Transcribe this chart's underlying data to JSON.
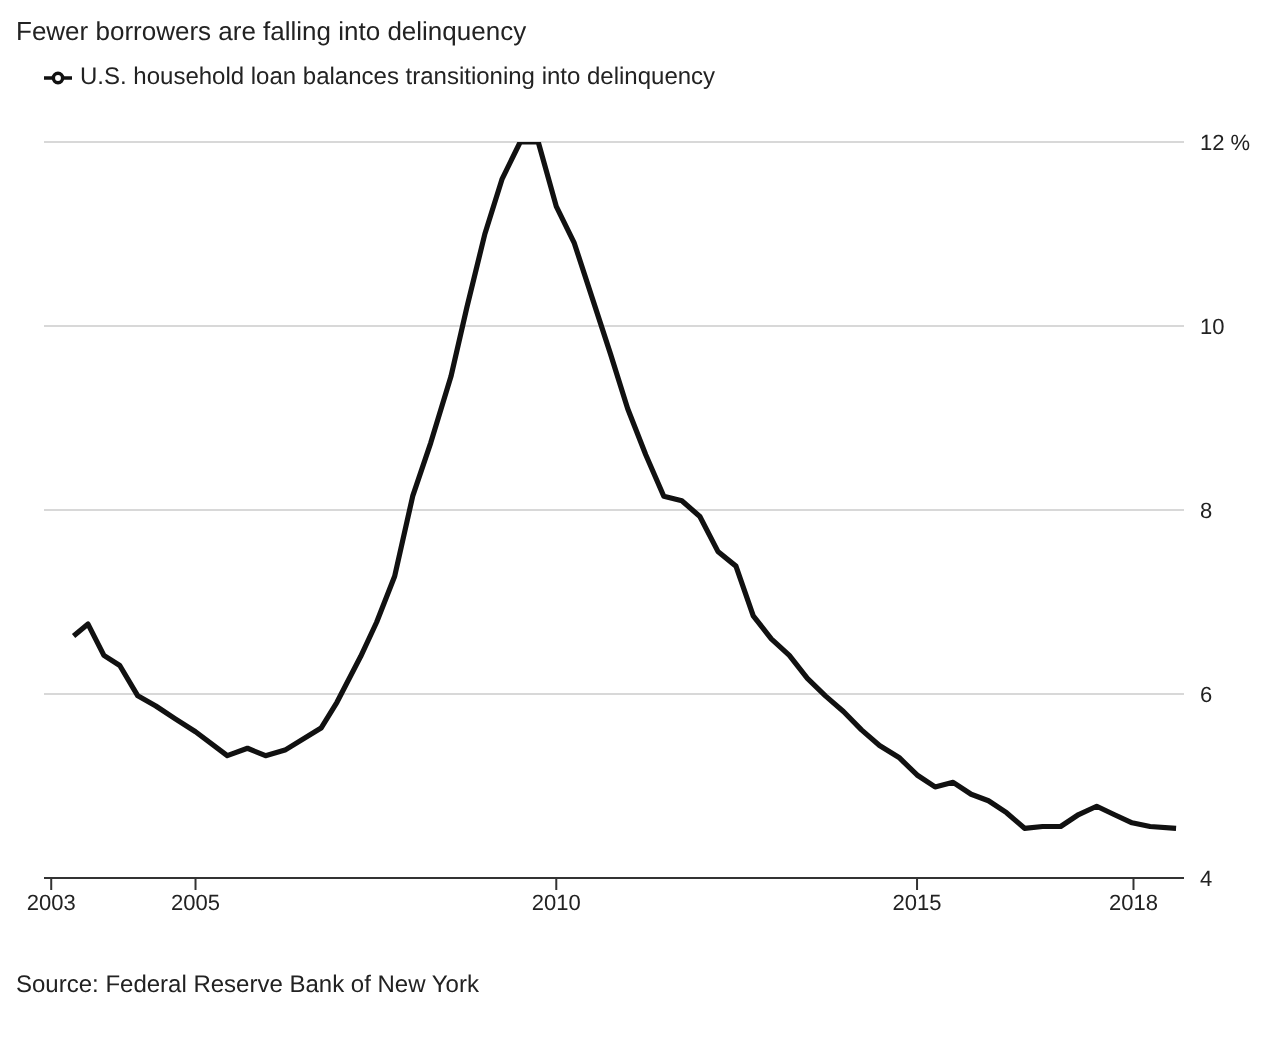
{
  "chart_data": {
    "type": "line",
    "title": "Fewer borrowers are falling into delinquency",
    "annotations": [
      "Source: Federal Reserve Bank of New York"
    ],
    "x": [
      2003.31,
      2003.51,
      2003.73,
      2003.95,
      2004.2,
      2004.45,
      2004.72,
      2005.0,
      2005.44,
      2005.72,
      2005.97,
      2006.24,
      2006.74,
      2006.96,
      2007.29,
      2007.51,
      2007.76,
      2008.01,
      2008.26,
      2008.54,
      2008.76,
      2009.01,
      2009.25,
      2009.5,
      2009.75,
      2010.0,
      2010.25,
      2010.5,
      2010.75,
      2010.99,
      2011.24,
      2011.49,
      2011.74,
      2011.99,
      2012.24,
      2012.49,
      2012.73,
      2012.98,
      2013.23,
      2013.48,
      2013.73,
      2013.98,
      2014.23,
      2014.48,
      2014.75,
      2015.0,
      2015.25,
      2015.5,
      2015.75,
      2015.99,
      2016.24,
      2016.49,
      2016.74,
      2016.99,
      2017.24,
      2017.49,
      2017.73,
      2017.98,
      2018.23,
      2018.59
    ],
    "series": [
      {
        "name": "U.S. household loan balances transitioning into delinquency",
        "color": "#111111",
        "values": [
          6.63,
          6.76,
          6.42,
          6.31,
          5.98,
          5.87,
          5.73,
          5.59,
          5.33,
          5.41,
          5.33,
          5.39,
          5.63,
          5.91,
          6.41,
          6.78,
          7.28,
          8.15,
          8.73,
          9.45,
          10.2,
          11.0,
          11.6,
          12.0,
          12.0,
          11.3,
          10.9,
          10.3,
          9.7,
          9.1,
          8.6,
          8.15,
          8.1,
          7.93,
          7.55,
          7.39,
          6.85,
          6.6,
          6.42,
          6.17,
          5.98,
          5.81,
          5.61,
          5.44,
          5.31,
          5.12,
          4.99,
          5.04,
          4.91,
          4.84,
          4.71,
          4.54,
          4.56,
          4.56,
          4.69,
          4.78,
          4.69,
          4.6,
          4.56,
          4.54
        ]
      }
    ],
    "xlim": [
      2002.9,
      2018.7
    ],
    "xticks": [
      2003,
      2005,
      2010,
      2015,
      2018
    ],
    "ylim": [
      4,
      12
    ],
    "yticks": [
      4,
      6,
      8,
      10,
      {
        "value": 12,
        "label": "12 %"
      }
    ],
    "grid": "y",
    "legend": "top left",
    "marker": "none",
    "line_style": "solid"
  }
}
